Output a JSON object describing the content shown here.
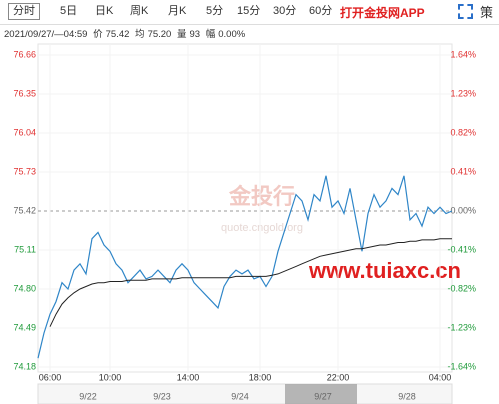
{
  "toolbar": {
    "tabs": [
      "分时",
      "5日",
      "日K",
      "周K",
      "月K",
      "5分",
      "15分",
      "30分",
      "60分"
    ],
    "app_link": "打开金投网APP",
    "icon": "策"
  },
  "info": {
    "time": "2021/09/27/—04:59",
    "price_label": "价",
    "price": "75.42",
    "avg_label": "均",
    "avg": "75.20",
    "vol_label": "量",
    "vol": "93",
    "amp_label": "幅",
    "amp": "0.00%"
  },
  "watermark": {
    "brand": "金投行",
    "site": "quote.cngold.org",
    "url": "www.tuiaxc.cn"
  },
  "navigator": {
    "dates": [
      "9/22",
      "9/23",
      "9/24",
      "9/27",
      "9/28"
    ]
  },
  "chart_data": {
    "type": "line",
    "categories": [
      null,
      null,
      "06:00",
      null,
      null,
      null,
      null,
      null,
      null,
      null,
      null,
      null,
      "10:00",
      null,
      null,
      null,
      null,
      null,
      null,
      null,
      null,
      null,
      null,
      null,
      null,
      "14:00",
      null,
      null,
      null,
      null,
      null,
      null,
      null,
      null,
      null,
      null,
      null,
      "18:00",
      null,
      null,
      null,
      null,
      null,
      null,
      null,
      null,
      null,
      null,
      null,
      null,
      "22:00",
      null,
      null,
      null,
      null,
      null,
      null,
      null,
      null,
      null,
      null,
      null,
      null,
      null,
      null,
      null,
      null,
      "04:00",
      null,
      null
    ],
    "series": [
      {
        "name": "价",
        "color": "#2f86c8",
        "values": [
          74.25,
          74.45,
          74.6,
          74.7,
          74.85,
          74.8,
          74.95,
          75.0,
          74.92,
          75.2,
          75.25,
          75.15,
          75.1,
          75.0,
          74.95,
          74.85,
          74.9,
          74.95,
          74.88,
          74.9,
          74.95,
          74.9,
          74.85,
          74.95,
          75.0,
          74.95,
          74.85,
          74.8,
          74.75,
          74.7,
          74.65,
          74.82,
          74.9,
          74.95,
          74.92,
          74.95,
          74.88,
          74.9,
          74.82,
          74.9,
          75.1,
          75.25,
          75.4,
          75.55,
          75.5,
          75.35,
          75.55,
          75.5,
          75.7,
          75.45,
          75.5,
          75.4,
          75.6,
          75.35,
          75.1,
          75.4,
          75.55,
          75.45,
          75.5,
          75.6,
          75.55,
          75.7,
          75.35,
          75.4,
          75.3,
          75.45,
          75.4,
          75.45,
          75.4,
          75.42
        ]
      },
      {
        "name": "均",
        "color": "#222222",
        "values": [
          null,
          null,
          74.5,
          74.6,
          74.68,
          74.73,
          74.77,
          74.8,
          74.82,
          74.84,
          74.85,
          74.85,
          74.86,
          74.86,
          74.86,
          74.87,
          74.87,
          74.87,
          74.87,
          74.88,
          74.88,
          74.88,
          74.88,
          74.88,
          74.89,
          74.89,
          74.89,
          74.89,
          74.89,
          74.89,
          74.89,
          74.89,
          74.89,
          74.9,
          74.9,
          74.9,
          74.9,
          74.9,
          74.9,
          74.91,
          74.92,
          74.94,
          74.96,
          74.98,
          75.0,
          75.02,
          75.04,
          75.06,
          75.07,
          75.08,
          75.09,
          75.1,
          75.11,
          75.12,
          75.12,
          75.13,
          75.14,
          75.15,
          75.15,
          75.16,
          75.17,
          75.17,
          75.18,
          75.18,
          75.19,
          75.19,
          75.19,
          75.2,
          75.2,
          75.2
        ]
      }
    ],
    "ylim": [
      74.18,
      76.66
    ],
    "yticks": [
      {
        "value": 76.66,
        "label": "76.66"
      },
      {
        "value": 76.35,
        "label": "76.35"
      },
      {
        "value": 76.04,
        "label": "76.04"
      },
      {
        "value": 75.73,
        "label": "75.73"
      },
      {
        "value": 75.42,
        "label": "75.42"
      },
      {
        "value": 75.11,
        "label": "75.11"
      },
      {
        "value": 74.8,
        "label": "74.80"
      },
      {
        "value": 74.49,
        "label": "74.49"
      },
      {
        "value": 74.18,
        "label": "74.18"
      }
    ],
    "y2lim": [
      -1.64,
      1.64
    ],
    "y2ticks": [
      {
        "value": 1.64,
        "label": "1.64%"
      },
      {
        "value": 1.23,
        "label": "1.23%"
      },
      {
        "value": 0.82,
        "label": "0.82%"
      },
      {
        "value": 0.41,
        "label": "0.41%"
      },
      {
        "value": 0,
        "label": "0.00%"
      },
      {
        "value": -0.41,
        "label": "-0.41%"
      },
      {
        "value": -0.82,
        "label": "-0.82%"
      },
      {
        "value": -1.23,
        "label": "-1.23%"
      },
      {
        "value": -1.64,
        "label": "-1.64%"
      }
    ],
    "up_color": "#e03030",
    "down_color": "#1f9a3a"
  }
}
